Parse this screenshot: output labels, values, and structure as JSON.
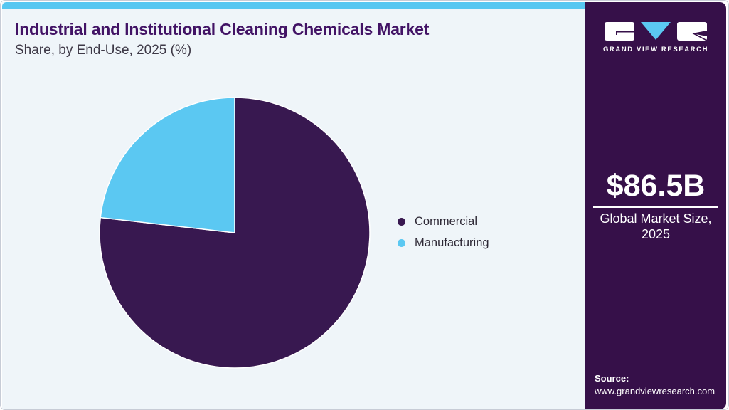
{
  "header": {
    "title": "Industrial and Institutional Cleaning Chemicals Market",
    "subtitle": "Share, by End-Use, 2025 (%)"
  },
  "chart_data": {
    "type": "pie",
    "title": "Industrial and Institutional Cleaning Chemicals Market Share, by End-Use, 2025 (%)",
    "labels": [
      "Commercial",
      "Manufacturing"
    ],
    "values": [
      76.8,
      23.2
    ],
    "unit": "%",
    "colors": [
      "#381850",
      "#5BC8F2"
    ],
    "start_angle": "top",
    "direction": "clockwise",
    "legend_position": "right",
    "slice_separator_color": "#FFFFFF"
  },
  "sidebar": {
    "logo_caption": "GRAND VIEW RESEARCH",
    "market_size": "$86.5B",
    "market_size_caption": "Global Market Size, 2025",
    "source_label": "Source:",
    "source_url": "www.grandviewresearch.com"
  },
  "colors": {
    "accent_blue": "#57C7F1",
    "pie_purple": "#381850",
    "sidebar_purple": "#361049",
    "title_purple": "#421365",
    "page_bg": "#EFF5F9"
  }
}
